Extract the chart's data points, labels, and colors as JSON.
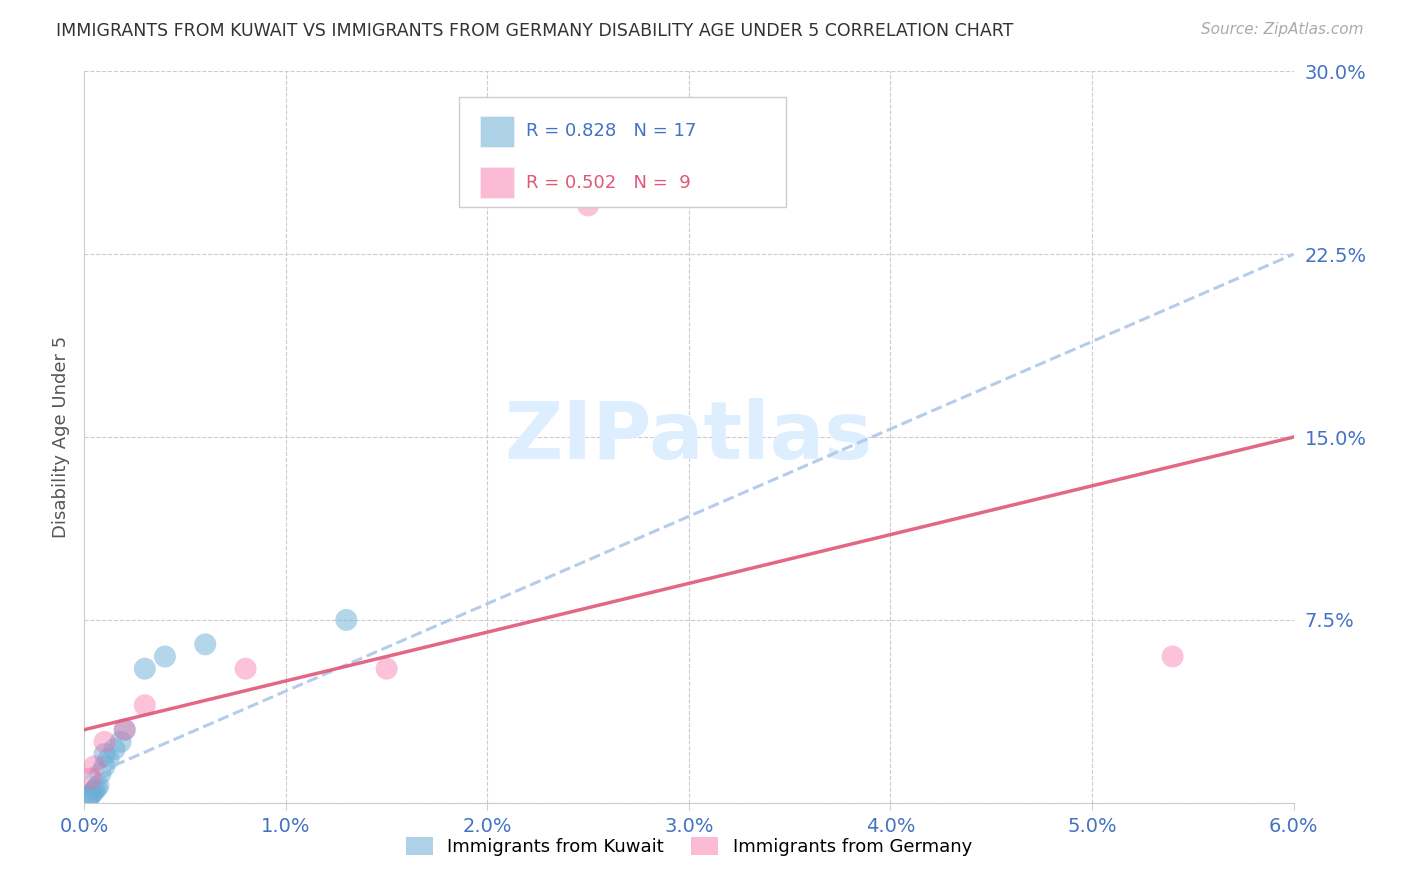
{
  "title": "IMMIGRANTS FROM KUWAIT VS IMMIGRANTS FROM GERMANY DISABILITY AGE UNDER 5 CORRELATION CHART",
  "source": "Source: ZipAtlas.com",
  "ylabel": "Disability Age Under 5",
  "xlim": [
    0.0,
    0.06
  ],
  "ylim": [
    0.0,
    0.3
  ],
  "xticks": [
    0.0,
    0.01,
    0.02,
    0.03,
    0.04,
    0.05,
    0.06
  ],
  "yticks": [
    0.0,
    0.075,
    0.15,
    0.225,
    0.3
  ],
  "ytick_labels": [
    "",
    "7.5%",
    "15.0%",
    "22.5%",
    "30.0%"
  ],
  "xtick_labels": [
    "0.0%",
    "1.0%",
    "2.0%",
    "3.0%",
    "4.0%",
    "5.0%",
    "6.0%"
  ],
  "kuwait_R": 0.828,
  "kuwait_N": 17,
  "germany_R": 0.502,
  "germany_N": 9,
  "kuwait_color": "#6baed6",
  "germany_color": "#f768a1",
  "kuwait_x": [
    0.0002,
    0.0003,
    0.0004,
    0.0005,
    0.0006,
    0.0007,
    0.0008,
    0.001,
    0.001,
    0.0012,
    0.0015,
    0.0018,
    0.002,
    0.003,
    0.004,
    0.006,
    0.013
  ],
  "kuwait_y": [
    0.002,
    0.003,
    0.004,
    0.005,
    0.006,
    0.007,
    0.012,
    0.015,
    0.02,
    0.018,
    0.022,
    0.025,
    0.03,
    0.055,
    0.06,
    0.065,
    0.075
  ],
  "germany_x": [
    0.0003,
    0.0005,
    0.001,
    0.002,
    0.003,
    0.008,
    0.015,
    0.025,
    0.054
  ],
  "germany_y": [
    0.01,
    0.015,
    0.025,
    0.03,
    0.04,
    0.055,
    0.055,
    0.245,
    0.06
  ],
  "kuwait_line_x": [
    0.0,
    0.06
  ],
  "kuwait_line_y": [
    0.01,
    0.225
  ],
  "germany_line_x": [
    0.0,
    0.06
  ],
  "germany_line_y": [
    0.03,
    0.15
  ],
  "background_color": "#ffffff",
  "grid_color": "#cccccc",
  "title_color": "#333333",
  "tick_color": "#4472c4",
  "watermark_text": "ZIPatlas",
  "watermark_color": "#ddeeff"
}
